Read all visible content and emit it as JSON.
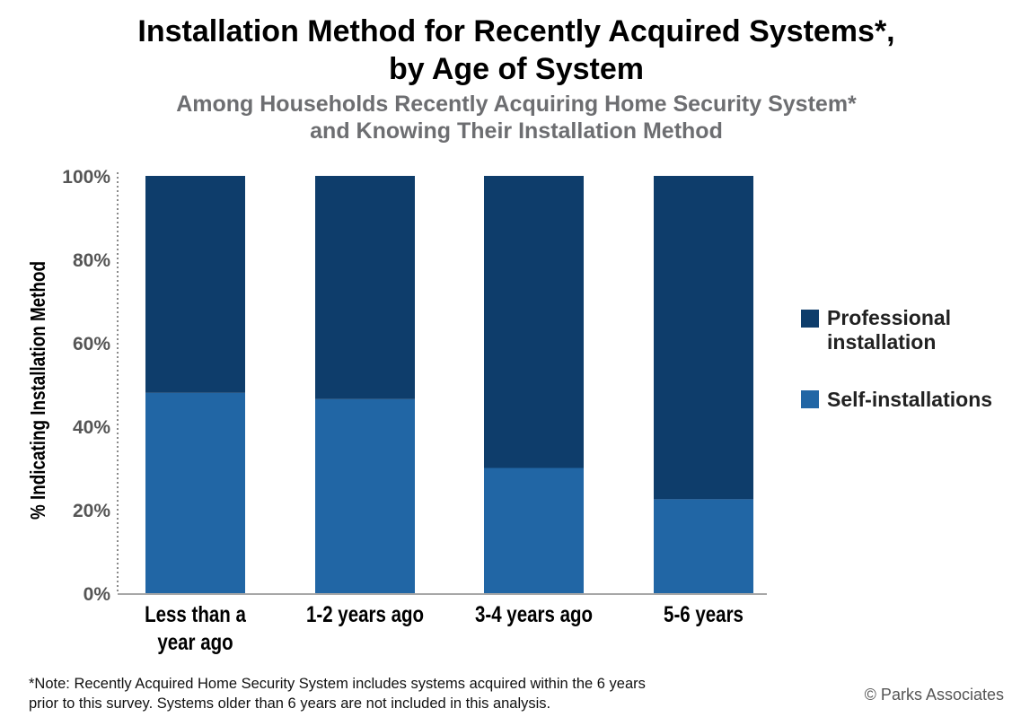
{
  "chart_data": {
    "type": "bar",
    "stacked": true,
    "title": "Installation Method for Recently Acquired Systems*, by Age of System",
    "title_lines": [
      "Installation Method for Recently Acquired Systems*,",
      "by Age of System"
    ],
    "subtitle": "Among Households Recently Acquiring Home Security System* and Knowing Their Installation Method",
    "subtitle_lines": [
      "Among Households Recently Acquiring Home Security System*",
      "and Knowing Their Installation Method"
    ],
    "xlabel": "",
    "ylabel": "% Indicating Installation Method",
    "ylim": [
      0,
      100
    ],
    "y_ticks": [
      "0%",
      "20%",
      "40%",
      "60%",
      "80%",
      "100%"
    ],
    "grid": false,
    "legend_position": "right",
    "categories": [
      [
        "Less than a",
        "year ago"
      ],
      [
        "1-2 years ago"
      ],
      [
        "3-4 years ago"
      ],
      [
        "5-6 years"
      ]
    ],
    "series": [
      {
        "name": "Self-installations",
        "color": "#2166a5",
        "values": [
          48,
          46.5,
          30,
          22.5
        ]
      },
      {
        "name": "Professional installation",
        "name_lines": [
          "Professional",
          "installation"
        ],
        "color": "#0e3d6b",
        "values": [
          52,
          53.5,
          70,
          77.5
        ]
      }
    ]
  },
  "footnote_lines": [
    "*Note: Recently Acquired Home Security System includes systems acquired within the 6 years",
    "prior to this survey. Systems older than 6 years are not included in this analysis."
  ],
  "copyright": "© Parks Associates"
}
